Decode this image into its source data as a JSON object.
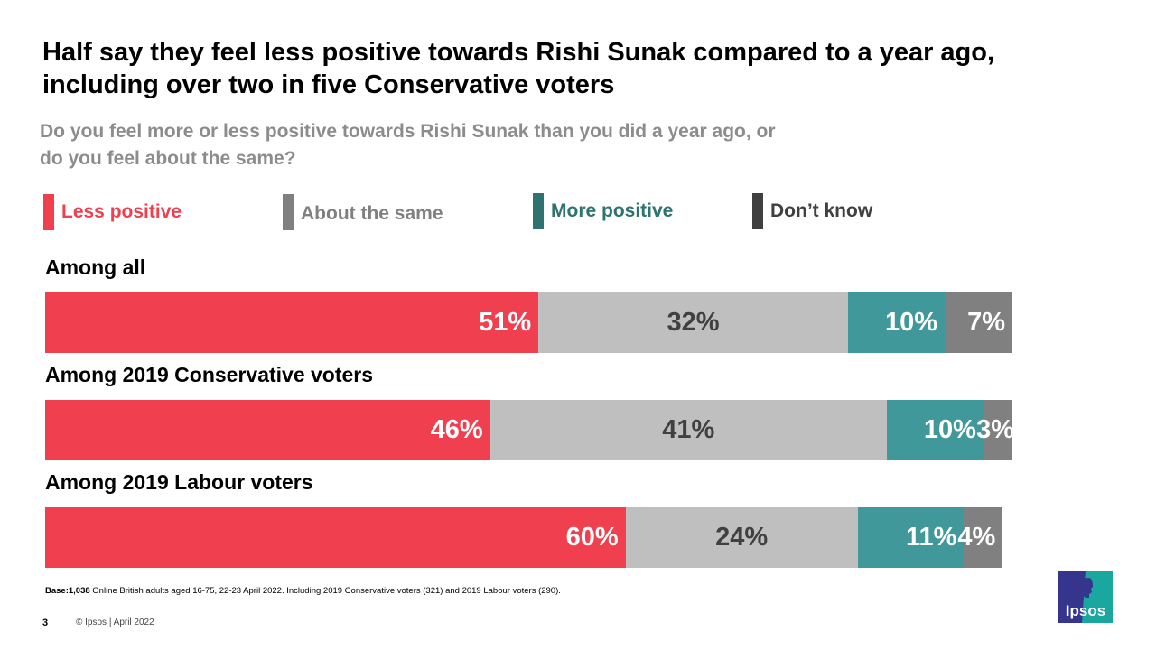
{
  "title": "Half say they feel less positive towards Rishi Sunak compared to a year ago, including over two in five Conservative voters",
  "subtitle": "Do you feel more or less positive towards Rishi Sunak than you did a year ago, or do you feel about the same?",
  "legend": [
    {
      "label": "Less positive",
      "swatch_color": "#f04050",
      "text_color": "#f04050"
    },
    {
      "label": "About the same",
      "swatch_color": "#808080",
      "text_color": "#808080"
    },
    {
      "label": "More positive",
      "swatch_color": "#2e7370",
      "text_color": "#2e7370"
    },
    {
      "label": "Don’t know",
      "swatch_color": "#404040",
      "text_color": "#404040"
    }
  ],
  "chart_data": {
    "type": "bar",
    "orientation": "horizontal",
    "stacked": true,
    "title": "Half say they feel less positive towards Rishi Sunak compared to a year ago, including over two in five Conservative voters",
    "subtitle": "Do you feel more or less positive towards Rishi Sunak than you did a year ago, or do you feel about the same?",
    "categories": [
      "Among all",
      "Among 2019 Conservative voters",
      "Among 2019 Labour voters"
    ],
    "series": [
      {
        "name": "Less positive",
        "color": "#f04050",
        "values": [
          51,
          46,
          60
        ]
      },
      {
        "name": "About the same",
        "color": "#bfbfbf",
        "values": [
          32,
          41,
          24
        ]
      },
      {
        "name": "More positive",
        "color": "#41989a",
        "values": [
          10,
          10,
          11
        ]
      },
      {
        "name": "Don’t know",
        "color": "#808080",
        "values": [
          7,
          3,
          4
        ]
      }
    ],
    "data_labels": [
      [
        "51%",
        "32%",
        "10%",
        "7%"
      ],
      [
        "46%",
        "41%",
        "10%",
        "3%"
      ],
      [
        "60%",
        "24%",
        "11%",
        "4%"
      ]
    ],
    "xlim": [
      0,
      100
    ],
    "unit": "%",
    "grid": false,
    "legend_position": "top"
  },
  "footer": {
    "base_bold": "Base:1,038",
    "base_text": " Online British adults aged 16-75, 22-23 April 2022. Including 2019 Conservative voters (321) and 2019 Labour voters (290).",
    "page_number": "3",
    "copyright": "© Ipsos | April 2022"
  },
  "logo": {
    "text": "Ipsos"
  }
}
